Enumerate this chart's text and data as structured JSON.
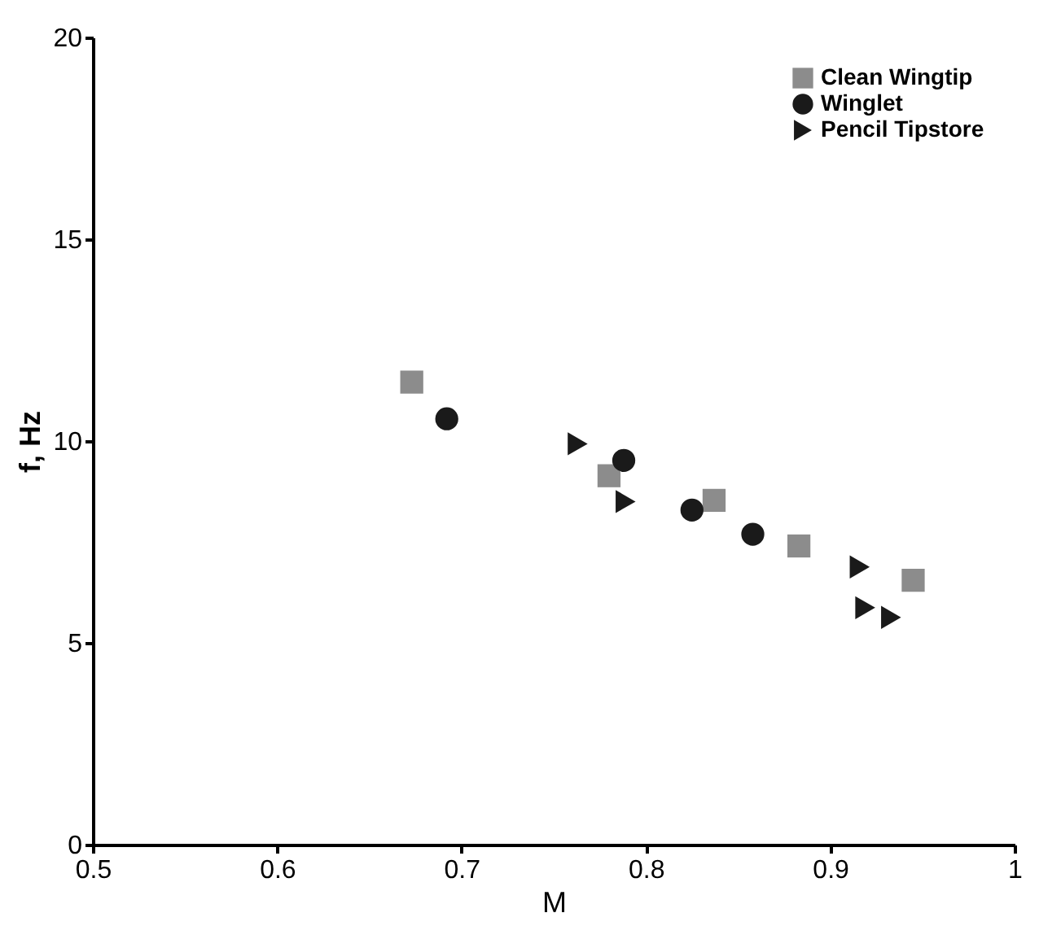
{
  "chart_data": {
    "type": "scatter",
    "xlabel": "M",
    "ylabel": "f, Hz",
    "xlim": [
      0.5,
      1
    ],
    "xticks": [
      0.5,
      0.6,
      0.7,
      0.8,
      0.9,
      1
    ],
    "ylim": [
      0,
      20
    ],
    "yticks": [
      0,
      5,
      10,
      15,
      20
    ],
    "grid": false,
    "legend": "top right",
    "series": [
      {
        "name": "Clean Wingtip",
        "color": "#8c8c8c",
        "marker": "square",
        "x": [
          0.673,
          0.78,
          0.837,
          0.883,
          0.945
        ],
        "values": [
          11.46,
          9.14,
          8.53,
          7.4,
          6.55
        ]
      },
      {
        "name": "Winglet",
        "color": "#1a1a1a",
        "marker": "circle",
        "x": [
          0.692,
          0.788,
          0.825,
          0.858
        ],
        "values": [
          10.55,
          9.52,
          8.29,
          7.69
        ]
      },
      {
        "name": "Pencil Tipstore",
        "color": "#1a1a1a",
        "marker": "triangle",
        "x": [
          0.763,
          0.789,
          0.916,
          0.919,
          0.933
        ],
        "values": [
          9.93,
          8.5,
          6.88,
          5.87,
          5.63
        ]
      }
    ]
  }
}
